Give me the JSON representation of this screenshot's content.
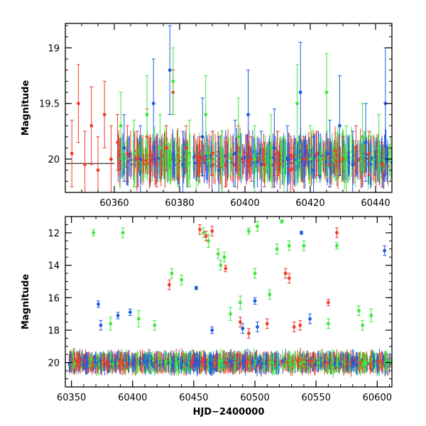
{
  "colors": {
    "red": "#f03c28",
    "green": "#3ce63c",
    "blue": "#1e5ae6",
    "black": "#000000"
  },
  "chart_data": [
    {
      "type": "scatter",
      "panel": "top",
      "xlabel": "",
      "ylabel": "Magnitude",
      "xlim": [
        60345,
        60445
      ],
      "ylim": [
        20.3,
        18.78
      ],
      "y_inverted": true,
      "x_ticks": [
        60360,
        60380,
        60400,
        60420,
        60440
      ],
      "y_ticks": [
        19,
        19.5,
        20
      ],
      "reference_line": {
        "x": [
          60345,
          60360
        ],
        "y": 20.04
      },
      "series": [
        {
          "color": "red",
          "x": [
            60347,
            60349,
            60351,
            60353,
            60355,
            60357,
            60359,
            60361,
            60364,
            60367,
            60370,
            60373,
            60376,
            60378,
            60382,
            60386,
            60390,
            60394,
            60398,
            60402,
            60406,
            60410,
            60414,
            60418,
            60422,
            60426,
            60430,
            60434,
            60438,
            60442
          ],
          "y": [
            19.95,
            19.5,
            20.05,
            19.7,
            20.1,
            19.6,
            20.0,
            19.85,
            19.95,
            20.0,
            19.8,
            20.05,
            19.9,
            19.4,
            19.9,
            20.0,
            19.95,
            20.05,
            19.9,
            20.0,
            20.05,
            19.95,
            20.1,
            20.0,
            19.95,
            20.05,
            20.0,
            19.9,
            19.95,
            20.05
          ],
          "err": [
            0.3,
            0.35,
            0.3,
            0.35,
            0.3,
            0.3,
            0.3,
            0.25,
            0.25,
            0.25,
            0.25,
            0.2,
            0.2,
            0.2,
            0.2,
            0.2,
            0.2,
            0.2,
            0.2,
            0.2,
            0.2,
            0.2,
            0.2,
            0.2,
            0.2,
            0.2,
            0.2,
            0.2,
            0.2,
            0.2
          ]
        },
        {
          "color": "green",
          "x": [
            60362,
            60366,
            60370,
            60374,
            60378,
            60383,
            60388,
            60393,
            60398,
            60403,
            60408,
            60412,
            60416,
            60420,
            60425,
            60431,
            60436,
            60441
          ],
          "y": [
            19.7,
            19.95,
            19.6,
            19.9,
            19.3,
            19.95,
            19.6,
            20.05,
            19.8,
            20.0,
            19.9,
            20.1,
            19.5,
            20.0,
            19.4,
            20.0,
            19.8,
            19.9
          ],
          "err": [
            0.3,
            0.3,
            0.35,
            0.3,
            0.3,
            0.3,
            0.35,
            0.3,
            0.35,
            0.3,
            0.3,
            0.3,
            0.35,
            0.3,
            0.35,
            0.3,
            0.3,
            0.3
          ]
        },
        {
          "color": "blue",
          "x": [
            60363,
            60368,
            60372,
            60377,
            60381,
            60387,
            60392,
            60397,
            60401,
            60405,
            60409,
            60413,
            60417,
            60421,
            60426,
            60429,
            60433,
            60437,
            60443
          ],
          "y": [
            19.9,
            20.0,
            19.5,
            19.2,
            20.05,
            19.8,
            20.1,
            19.95,
            19.6,
            20.05,
            19.9,
            20.0,
            19.4,
            20.1,
            19.95,
            19.7,
            20.05,
            19.85,
            19.5
          ],
          "err": [
            0.3,
            0.3,
            0.4,
            0.4,
            0.3,
            0.35,
            0.3,
            0.3,
            0.4,
            0.3,
            0.35,
            0.3,
            0.45,
            0.3,
            0.3,
            0.45,
            0.3,
            0.35,
            0.5
          ]
        }
      ]
    },
    {
      "type": "scatter",
      "panel": "bottom",
      "xlabel": "HJD−2400000",
      "ylabel": "Magnitude",
      "xlim": [
        60345,
        60612
      ],
      "ylim": [
        21.5,
        11
      ],
      "y_inverted": true,
      "x_ticks": [
        60350,
        60400,
        60450,
        60500,
        60550,
        60600
      ],
      "y_ticks": [
        12,
        14,
        16,
        18,
        20
      ],
      "series": [
        {
          "color": "green",
          "x": [
            60368,
            60382,
            60392,
            60405,
            60418,
            60432,
            60440,
            60458,
            60462,
            60470,
            60472,
            60475,
            60480,
            60488,
            60495,
            60500,
            60502,
            60512,
            60518,
            60522,
            60528,
            60540,
            60560,
            60567,
            60585,
            60588,
            60595
          ],
          "y": [
            12.0,
            17.6,
            12.0,
            17.3,
            17.7,
            14.5,
            14.9,
            12.0,
            12.5,
            13.3,
            14.0,
            13.5,
            17.0,
            16.3,
            11.9,
            14.5,
            11.6,
            15.8,
            13.0,
            11.3,
            12.8,
            12.8,
            17.6,
            12.8,
            16.8,
            17.7,
            17.1
          ],
          "err": [
            0.2,
            0.4,
            0.3,
            0.5,
            0.3,
            0.3,
            0.3,
            0.3,
            0.4,
            0.3,
            0.3,
            0.3,
            0.4,
            0.4,
            0.2,
            0.3,
            0.3,
            0.3,
            0.3,
            0.1,
            0.3,
            0.3,
            0.3,
            0.2,
            0.3,
            0.3,
            0.4
          ]
        },
        {
          "color": "red",
          "x": [
            60430,
            60455,
            60460,
            60465,
            60476,
            60488,
            60495,
            60510,
            60525,
            60528,
            60532,
            60537,
            60560,
            60567
          ],
          "y": [
            15.2,
            11.8,
            12.2,
            11.9,
            14.2,
            17.5,
            18.2,
            17.6,
            14.5,
            14.8,
            17.8,
            17.7,
            16.3,
            12.0
          ],
          "err": [
            0.3,
            0.3,
            0.3,
            0.3,
            0.2,
            0.3,
            0.3,
            0.3,
            0.3,
            0.3,
            0.3,
            0.3,
            0.2,
            0.3
          ]
        },
        {
          "color": "blue",
          "x": [
            60372,
            60374,
            60388,
            60398,
            60452,
            60465,
            60490,
            60500,
            60502,
            60538,
            60545,
            60606
          ],
          "y": [
            16.4,
            17.7,
            17.1,
            16.9,
            15.4,
            18.0,
            17.9,
            16.2,
            17.8,
            12.0,
            17.3,
            13.1
          ],
          "err": [
            0.2,
            0.3,
            0.2,
            0.2,
            0.1,
            0.2,
            0.3,
            0.2,
            0.3,
            0.1,
            0.3,
            0.3
          ]
        }
      ]
    }
  ]
}
